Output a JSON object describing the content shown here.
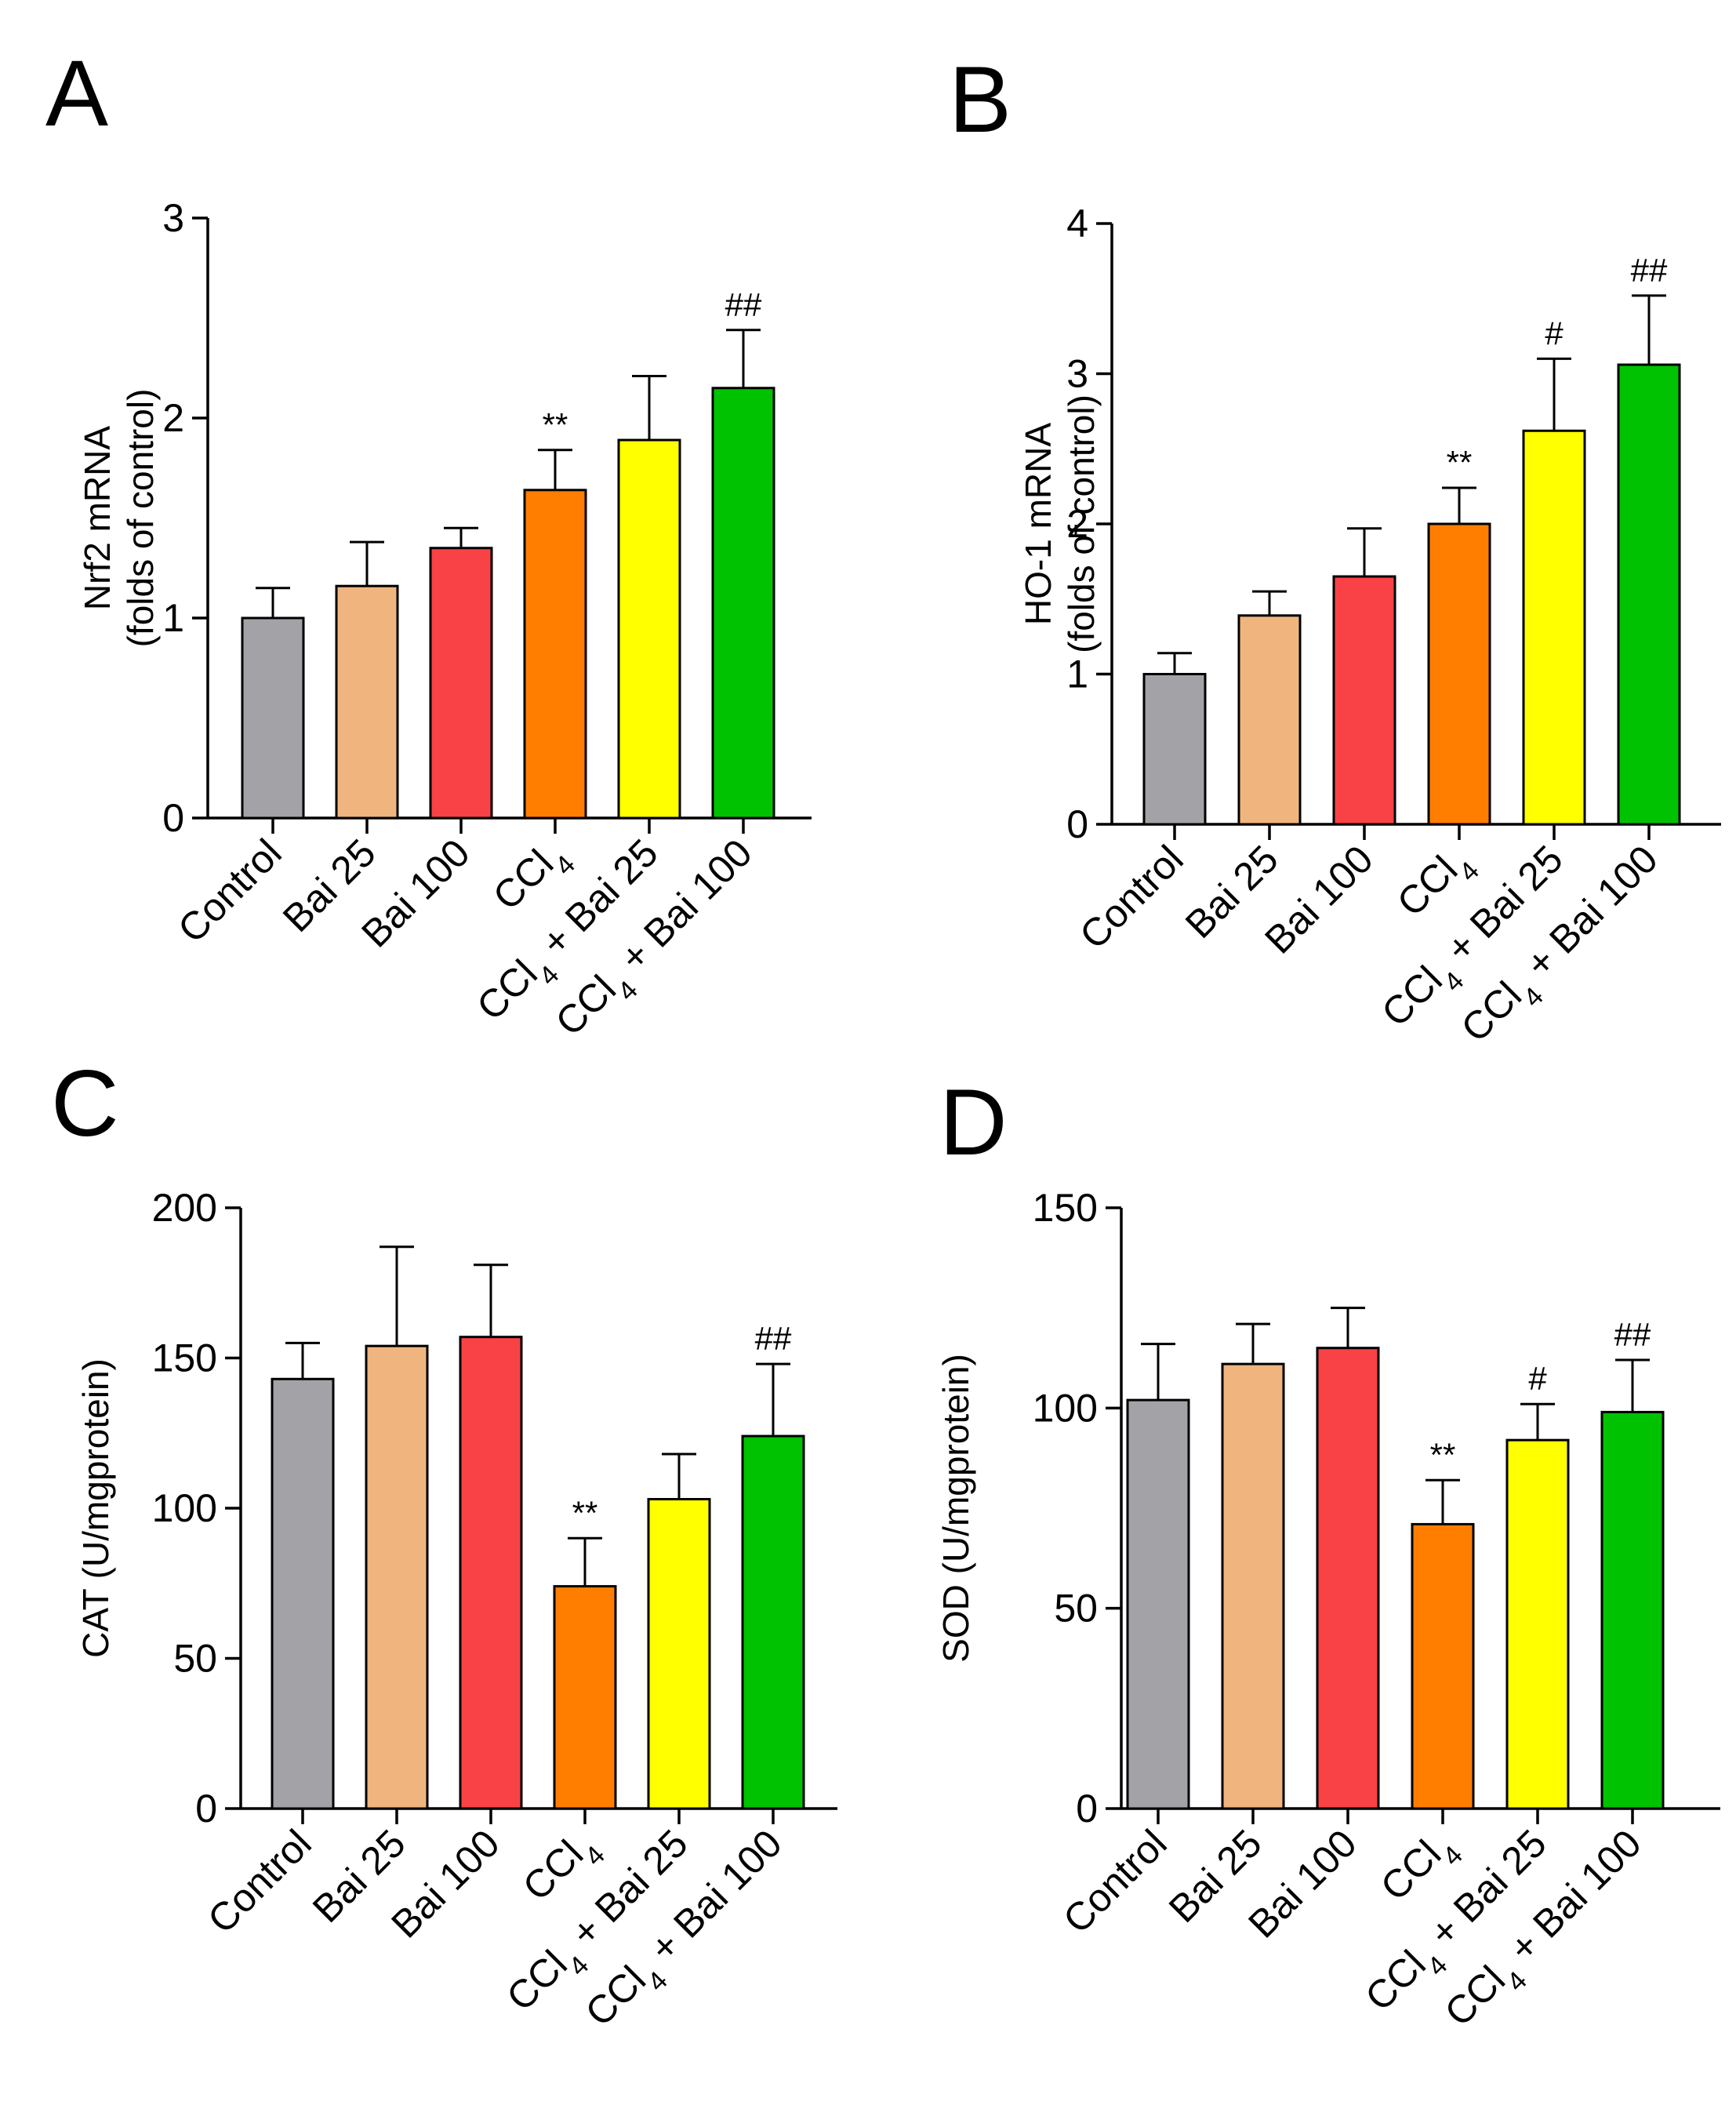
{
  "colors": {
    "control": "#a2a2a7",
    "bai25": "#f0b57f",
    "bai100": "#f84245",
    "ccl4": "#ff7e00",
    "ccl4_bai25": "#ffff00",
    "ccl4_bai100": "#00c200"
  },
  "chart_data": [
    {
      "type": "bar",
      "panel": "A",
      "categories": [
        "Control",
        "Bai 25",
        "Bai 100",
        "CCl4",
        "CCl4 + Bai 25",
        "CCl4 + Bai 100"
      ],
      "ylabel_line1": "Nrf2 mRNA",
      "ylabel_line2": "(folds of control)",
      "ylim": [
        0,
        3
      ],
      "yticks": [
        0,
        1,
        2,
        3
      ],
      "values": [
        1.0,
        1.16,
        1.35,
        1.64,
        1.89,
        2.15
      ],
      "errors": [
        0.15,
        0.22,
        0.1,
        0.2,
        0.32,
        0.29
      ],
      "significance": [
        "",
        "",
        "",
        "**",
        "",
        "##"
      ]
    },
    {
      "type": "bar",
      "panel": "B",
      "categories": [
        "Control",
        "Bai 25",
        "Bai 100",
        "CCl4",
        "CCl4 + Bai 25",
        "CCl4 + Bai 100"
      ],
      "ylabel_line1": "HO-1 mRNA",
      "ylabel_line2": "(folds of control)",
      "ylim": [
        0,
        4
      ],
      "yticks": [
        0,
        1,
        2,
        3,
        4
      ],
      "values": [
        1.0,
        1.39,
        1.65,
        2.0,
        2.62,
        3.06
      ],
      "errors": [
        0.14,
        0.16,
        0.32,
        0.24,
        0.48,
        0.46
      ],
      "significance": [
        "",
        "",
        "",
        "**",
        "#",
        "##"
      ]
    },
    {
      "type": "bar",
      "panel": "C",
      "categories": [
        "Control",
        "Bai 25",
        "Bai 100",
        "CCl4",
        "CCl4 + Bai 25",
        "CCl4 + Bai 100"
      ],
      "ylabel_line1": "CAT (U/mgprotein)",
      "ylabel_line2": "",
      "ylim": [
        0,
        200
      ],
      "yticks": [
        0,
        50,
        100,
        150,
        200
      ],
      "values": [
        143,
        154,
        157,
        74,
        103,
        124
      ],
      "errors": [
        12,
        33,
        24,
        16,
        15,
        24
      ],
      "significance": [
        "",
        "",
        "",
        "**",
        "",
        "##"
      ]
    },
    {
      "type": "bar",
      "panel": "D",
      "categories": [
        "Control",
        "Bai 25",
        "Bai 100",
        "CCl4",
        "CCl4 + Bai 25",
        "CCl4 + Bai 100"
      ],
      "ylabel_line1": "SOD (U/mgprotein)",
      "ylabel_line2": "",
      "ylim": [
        0,
        150
      ],
      "yticks": [
        0,
        50,
        100,
        150
      ],
      "values": [
        102,
        111,
        115,
        71,
        92,
        99
      ],
      "errors": [
        14,
        10,
        10,
        11,
        9,
        13
      ],
      "significance": [
        "",
        "",
        "",
        "**",
        "#",
        "##"
      ]
    }
  ]
}
